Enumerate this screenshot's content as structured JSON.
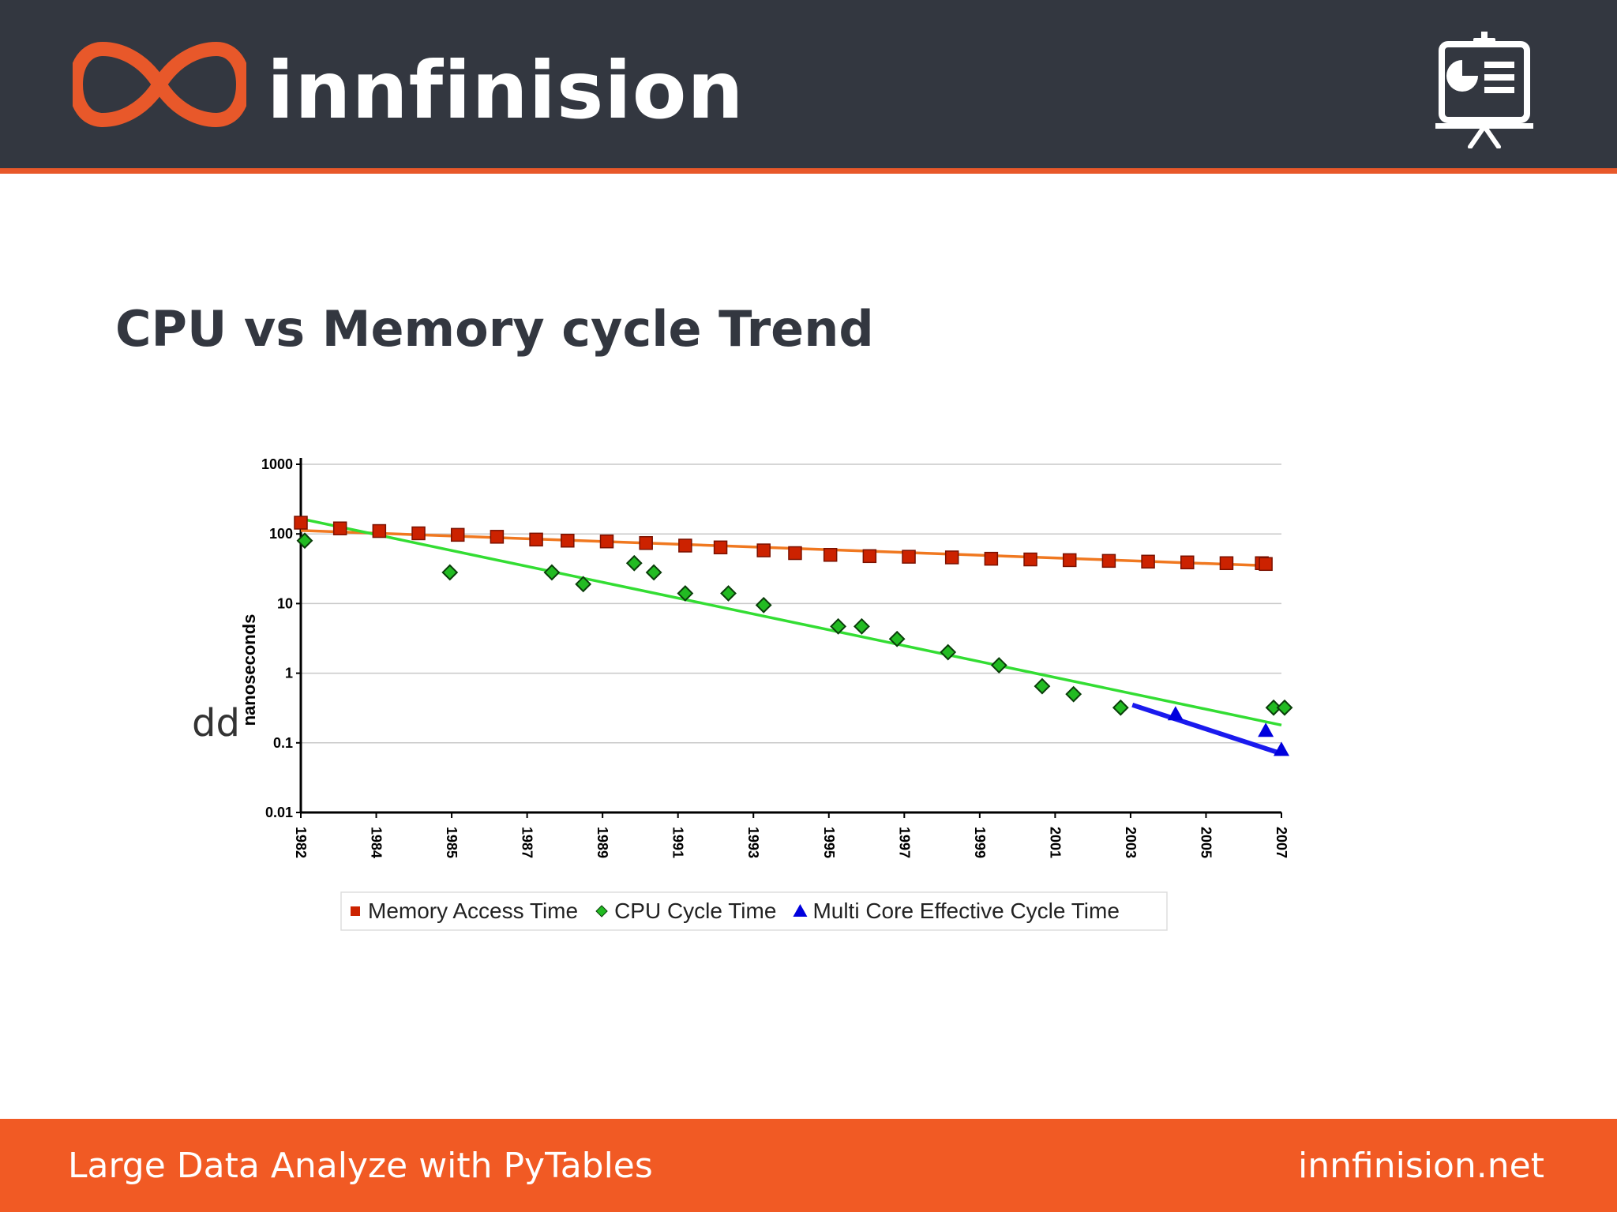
{
  "header": {
    "brand_name": "innfinision",
    "logo_icon": "infinity-logo-icon",
    "right_icon": "presentation-board-icon"
  },
  "slide": {
    "title": "CPU vs Memory cycle Trend",
    "stray_text": "dd"
  },
  "chart_data": {
    "type": "scatter",
    "ylabel": "nanoseconds",
    "yscale": "log",
    "ylim": [
      0.01,
      1000
    ],
    "yticks": [
      "0.01",
      "0.1",
      "1",
      "10",
      "100",
      "1000"
    ],
    "xlim": [
      1982,
      2007
    ],
    "xticks": [
      "1982",
      "1984",
      "1985",
      "1987",
      "1989",
      "1991",
      "1993",
      "1995",
      "1997",
      "1999",
      "2001",
      "2003",
      "2005",
      "2007"
    ],
    "grid": true,
    "legend_position": "bottom",
    "series": [
      {
        "name": "Memory Access Time",
        "marker": "square",
        "color": "#cc2200",
        "trend_color": "#f07820",
        "points": [
          [
            1982.0,
            145
          ],
          [
            1983.0,
            120
          ],
          [
            1984.0,
            110
          ],
          [
            1985.0,
            102
          ],
          [
            1986.0,
            97
          ],
          [
            1987.0,
            91
          ],
          [
            1988.0,
            83
          ],
          [
            1988.8,
            80
          ],
          [
            1989.8,
            78
          ],
          [
            1990.8,
            74
          ],
          [
            1991.8,
            68
          ],
          [
            1992.7,
            64
          ],
          [
            1993.8,
            58
          ],
          [
            1994.6,
            53
          ],
          [
            1995.5,
            50
          ],
          [
            1996.5,
            48
          ],
          [
            1997.5,
            47
          ],
          [
            1998.6,
            46
          ],
          [
            1999.6,
            44
          ],
          [
            2000.6,
            43
          ],
          [
            2001.6,
            42
          ],
          [
            2002.6,
            41
          ],
          [
            2003.6,
            40
          ],
          [
            2004.6,
            39
          ],
          [
            2005.6,
            38
          ],
          [
            2006.5,
            38
          ],
          [
            2006.6,
            37
          ]
        ],
        "trend": [
          [
            1982.0,
            112
          ],
          [
            2006.6,
            35
          ]
        ]
      },
      {
        "name": "CPU Cycle Time",
        "marker": "diamond",
        "color": "#22bb22",
        "trend_color": "#33dd33",
        "points": [
          [
            1982.1,
            80
          ],
          [
            1985.8,
            28
          ],
          [
            1988.4,
            28
          ],
          [
            1989.2,
            19
          ],
          [
            1990.5,
            38
          ],
          [
            1991.0,
            28
          ],
          [
            1991.8,
            14
          ],
          [
            1992.9,
            14
          ],
          [
            1993.8,
            9.5
          ],
          [
            1995.7,
            4.7
          ],
          [
            1996.3,
            4.7
          ],
          [
            1997.2,
            3.1
          ],
          [
            1998.5,
            2.0
          ],
          [
            1999.8,
            1.3
          ],
          [
            2000.9,
            0.65
          ],
          [
            2001.7,
            0.5
          ],
          [
            2002.9,
            0.32
          ],
          [
            2006.8,
            0.32
          ],
          [
            2008.0,
            0.32
          ]
        ],
        "trend": [
          [
            1982.0,
            165
          ],
          [
            2007.0,
            0.18
          ]
        ]
      },
      {
        "name": "Multi Core Effective Cycle Time",
        "marker": "triangle",
        "color": "#0000dd",
        "trend_color": "#1a1aee",
        "points": [
          [
            2004.3,
            0.26
          ],
          [
            2006.6,
            0.15
          ],
          [
            2007.0,
            0.08
          ]
        ],
        "trend": [
          [
            2003.2,
            0.35
          ],
          [
            2007.0,
            0.07
          ]
        ]
      }
    ]
  },
  "footer": {
    "left_text": "Large Data Analyze with PyTables",
    "right_text": "innfinision.net"
  }
}
